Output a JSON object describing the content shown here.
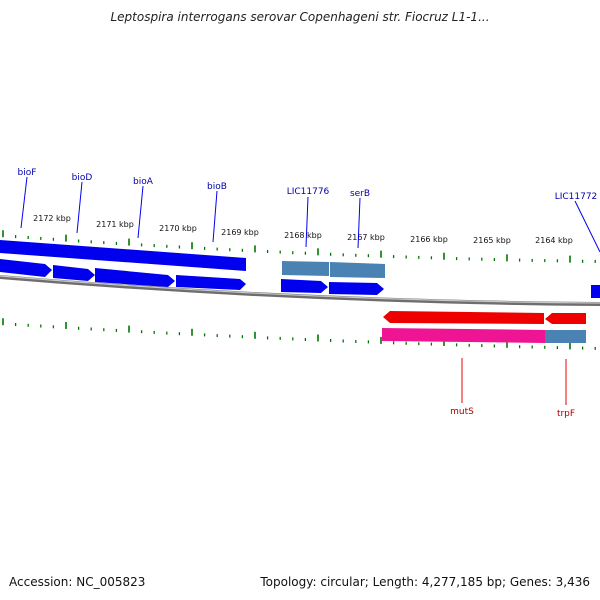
{
  "title": "Leptospira interrogans serovar Copenhageni str. Fiocruz L1-1...",
  "footer": {
    "accession": "Accession: NC_005823",
    "stats": "Topology: circular; Length: 4,277,185 bp; Genes: 3,436"
  },
  "colors": {
    "background": "#ffffff",
    "forward_gene": "#0000ee",
    "forward_gene_alt": "#4b82b4",
    "reverse_gene": "#ee0000",
    "reverse_cds": "#ee1493",
    "tick": "#007700",
    "backbone": "#808080",
    "forward_label": "#0000aa",
    "reverse_label": "#aa0000"
  },
  "scale_labels": [
    "2172 kbp",
    "2171 kbp",
    "2170 kbp",
    "2169 kbp",
    "2168 kbp",
    "2167 kbp",
    "2166 kbp",
    "2165 kbp",
    "2164 kbp"
  ],
  "forward_genes": [
    "bioF",
    "bioD",
    "bioA",
    "bioB",
    "LIC11776",
    "serB",
    "LIC11772"
  ],
  "reverse_genes": [
    "mutS",
    "trpF"
  ]
}
